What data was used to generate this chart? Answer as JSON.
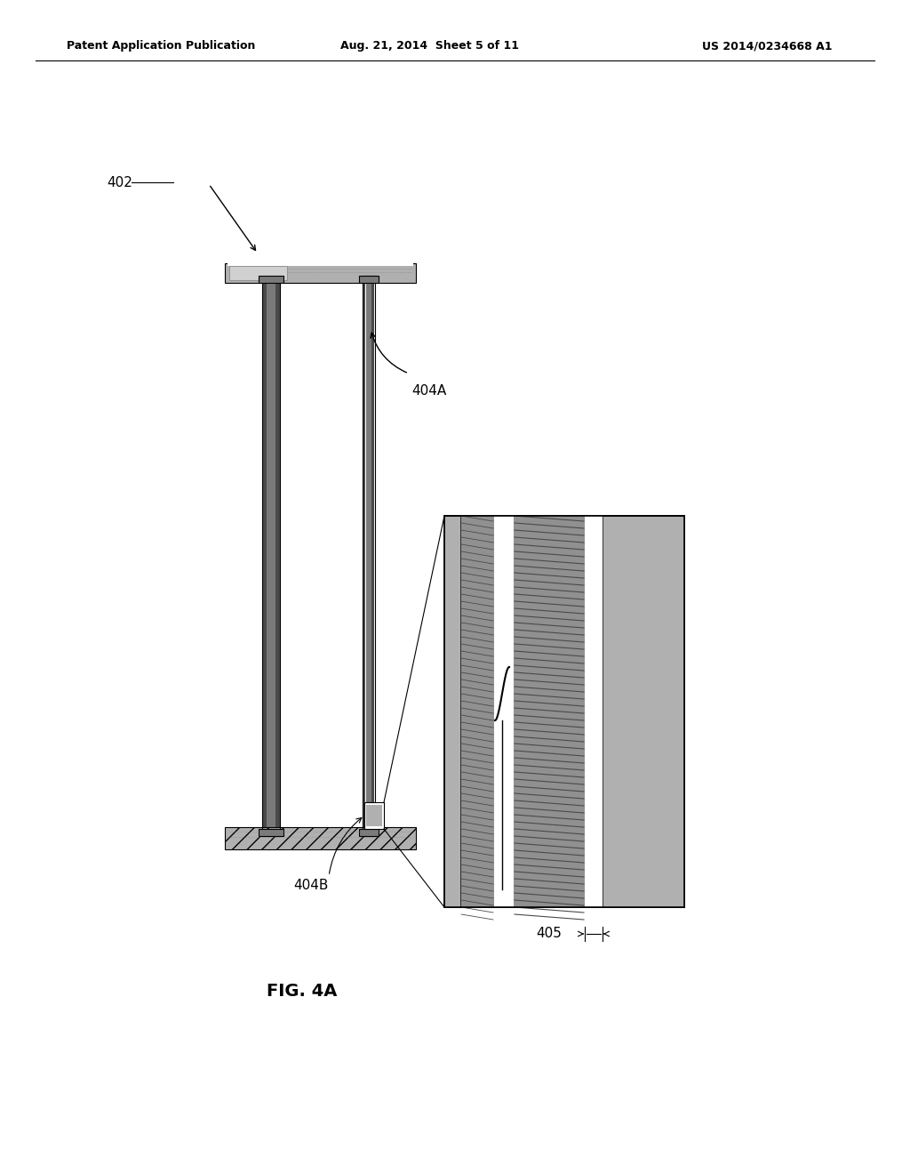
{
  "title_left": "Patent Application Publication",
  "title_center": "Aug. 21, 2014  Sheet 5 of 11",
  "title_right": "US 2014/0234668 A1",
  "fig_label": "FIG. 4A",
  "label_402": "402",
  "label_404A": "404A",
  "label_404B_main": "404B",
  "label_404B_zoom": "404B",
  "label_405": "405",
  "bg": "#ffffff",
  "c_dark": "#4a4a4a",
  "c_med": "#7a7a7a",
  "c_light": "#b0b0b0",
  "c_vlight": "#d0d0d0",
  "c_hatch": "#909090"
}
